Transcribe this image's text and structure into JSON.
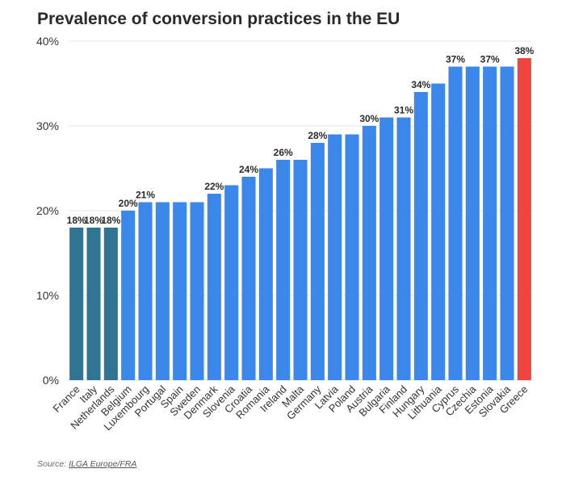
{
  "title": "Prevalence of conversion practices in the EU",
  "source": {
    "prefix": "Source:",
    "link_text": "ILGA Europe/FRA"
  },
  "colors": {
    "france_italy_netherlands": "#2f7493",
    "default_bar": "#3c87ea",
    "greece": "#f0453f",
    "grid": "#e6e6e6",
    "axis_text": "#333333"
  },
  "chart_data": {
    "type": "bar",
    "title": "Prevalence of conversion practices in the EU",
    "xlabel": "",
    "ylabel": "",
    "ylim": [
      0,
      40
    ],
    "yticks": [
      0,
      10,
      20,
      30,
      40
    ],
    "ytick_labels": [
      "0%",
      "10%",
      "20%",
      "30%",
      "40%"
    ],
    "grid": true,
    "categories": [
      "France",
      "Italy",
      "Netherlands",
      "Belgium",
      "Luxembourg",
      "Portugal",
      "Spain",
      "Sweden",
      "Denmark",
      "Slovenia",
      "Croatia",
      "Romania",
      "Ireland",
      "Malta",
      "Germany",
      "Latvia",
      "Poland",
      "Austria",
      "Bulgaria",
      "Finland",
      "Hungary",
      "Lithuania",
      "Cyprus",
      "Czechia",
      "Estonia",
      "Slovakia",
      "Greece"
    ],
    "values": [
      18,
      18,
      18,
      20,
      21,
      21,
      21,
      21,
      22,
      23,
      24,
      25,
      26,
      26,
      28,
      29,
      29,
      30,
      31,
      31,
      34,
      35,
      37,
      37,
      37,
      37,
      38
    ],
    "bar_color_groups": [
      "france_italy_netherlands",
      "france_italy_netherlands",
      "france_italy_netherlands",
      "default_bar",
      "default_bar",
      "default_bar",
      "default_bar",
      "default_bar",
      "default_bar",
      "default_bar",
      "default_bar",
      "default_bar",
      "default_bar",
      "default_bar",
      "default_bar",
      "default_bar",
      "default_bar",
      "default_bar",
      "default_bar",
      "default_bar",
      "default_bar",
      "default_bar",
      "default_bar",
      "default_bar",
      "default_bar",
      "default_bar",
      "greece"
    ],
    "data_labels": [
      "18%",
      "18%",
      "18%",
      "20%",
      "21%",
      "",
      "",
      "",
      "22%",
      "",
      "24%",
      "",
      "26%",
      "",
      "28%",
      "",
      "",
      "30%",
      "",
      "31%",
      "34%",
      "",
      "37%",
      "",
      "37%",
      "",
      "38%"
    ]
  }
}
